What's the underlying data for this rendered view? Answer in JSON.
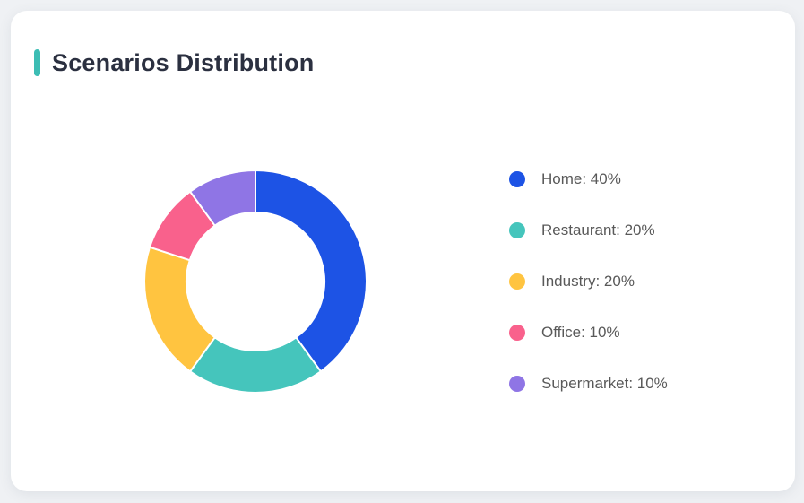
{
  "page": {
    "background_color": "#eff1f4",
    "card_background": "#ffffff"
  },
  "card": {
    "title": "Scenarios Distribution",
    "accent_color": "#3cbdb4",
    "title_color": "#2b3040"
  },
  "chart_data": {
    "type": "pie",
    "title": "Scenarios Distribution",
    "donut": true,
    "inner_radius_ratio": 0.62,
    "start_angle_deg": 0,
    "direction": "clockwise",
    "legend_position": "right",
    "unit": "%",
    "labels": [
      "Home",
      "Restaurant",
      "Industry",
      "Office",
      "Supermarket"
    ],
    "values": [
      40,
      20,
      20,
      10,
      10
    ],
    "colors": [
      "#1d53e5",
      "#45c5bc",
      "#ffc440",
      "#f9618c",
      "#8f75e5"
    ],
    "slice_border_color": "#ffffff",
    "legend_text_color": "#595959"
  }
}
